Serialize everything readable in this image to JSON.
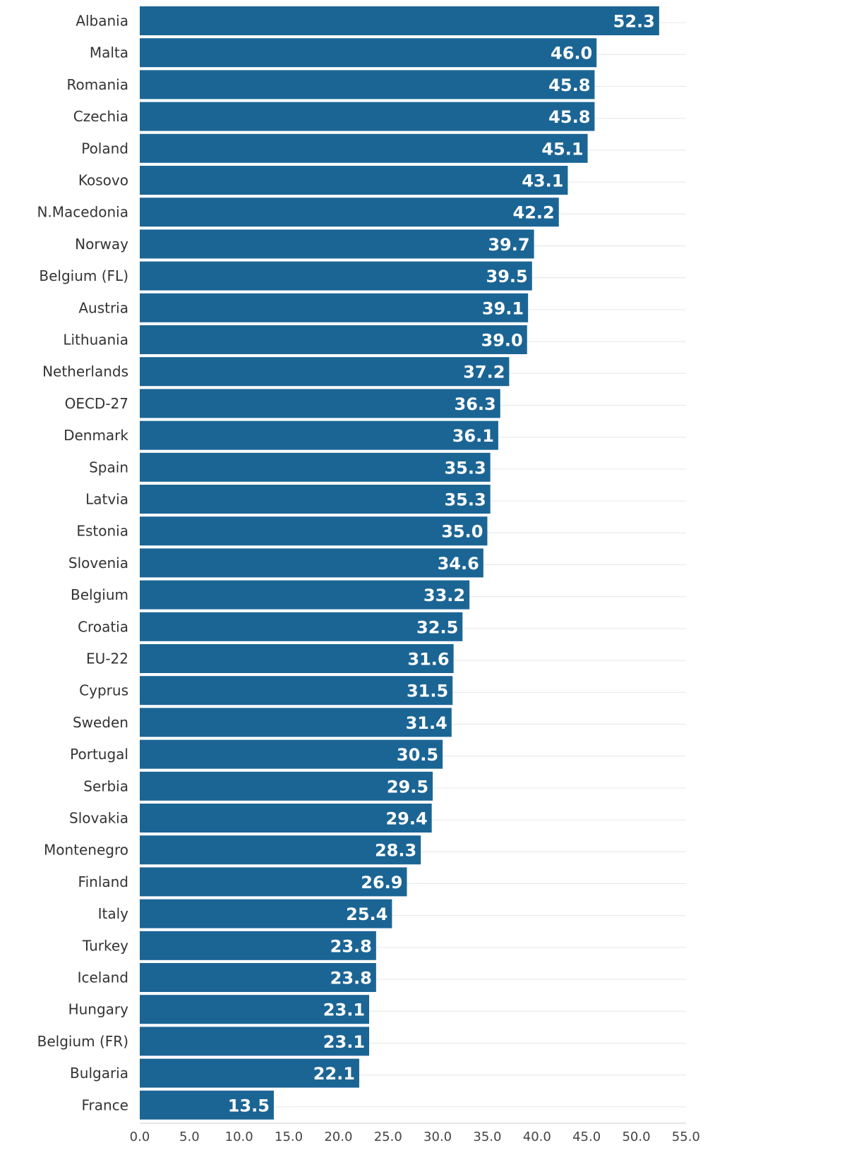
{
  "chart_data": {
    "type": "bar",
    "orientation": "horizontal",
    "title": "",
    "xlabel": "",
    "ylabel": "",
    "categories": [
      "Albania",
      "Malta",
      "Romania",
      "Czechia",
      "Poland",
      "Kosovo",
      "N.Macedonia",
      "Norway",
      "Belgium (FL)",
      "Austria",
      "Lithuania",
      "Netherlands",
      "OECD-27",
      "Denmark",
      "Spain",
      "Latvia",
      "Estonia",
      "Slovenia",
      "Belgium",
      "Croatia",
      "EU-22",
      "Cyprus",
      "Sweden",
      "Portugal",
      "Serbia",
      "Slovakia",
      "Montenegro",
      "Finland",
      "Italy",
      "Turkey",
      "Iceland",
      "Hungary",
      "Belgium (FR)",
      "Bulgaria",
      "France"
    ],
    "values": [
      52.3,
      46.0,
      45.8,
      45.8,
      45.1,
      43.1,
      42.2,
      39.7,
      39.5,
      39.1,
      39.0,
      37.2,
      36.3,
      36.1,
      35.3,
      35.3,
      35.0,
      34.6,
      33.2,
      32.5,
      31.6,
      31.5,
      31.4,
      30.5,
      29.5,
      29.4,
      28.3,
      26.9,
      25.4,
      23.8,
      23.8,
      23.1,
      23.1,
      22.1,
      13.5
    ],
    "value_labels": [
      "52.3",
      "46.0",
      "45.8",
      "45.8",
      "45.1",
      "43.1",
      "42.2",
      "39.7",
      "39.5",
      "39.1",
      "39.0",
      "37.2",
      "36.3",
      "36.1",
      "35.3",
      "35.3",
      "35.0",
      "34.6",
      "33.2",
      "32.5",
      "31.6",
      "31.5",
      "31.4",
      "30.5",
      "29.5",
      "29.4",
      "28.3",
      "26.9",
      "25.4",
      "23.8",
      "23.8",
      "23.1",
      "23.1",
      "22.1",
      "13.5"
    ],
    "xlim": [
      0,
      55
    ],
    "x_ticks": [
      0,
      5,
      10,
      15,
      20,
      25,
      30,
      35,
      40,
      45,
      50,
      55
    ],
    "x_tick_labels": [
      "0.0",
      "5.0",
      "10.0",
      "15.0",
      "20.0",
      "25.0",
      "30.0",
      "35.0",
      "40.0",
      "45.0",
      "50.0",
      "55.0"
    ],
    "grid": true,
    "legend": "none",
    "bar_color": "#1b6595",
    "label_color": "#ffffff"
  }
}
